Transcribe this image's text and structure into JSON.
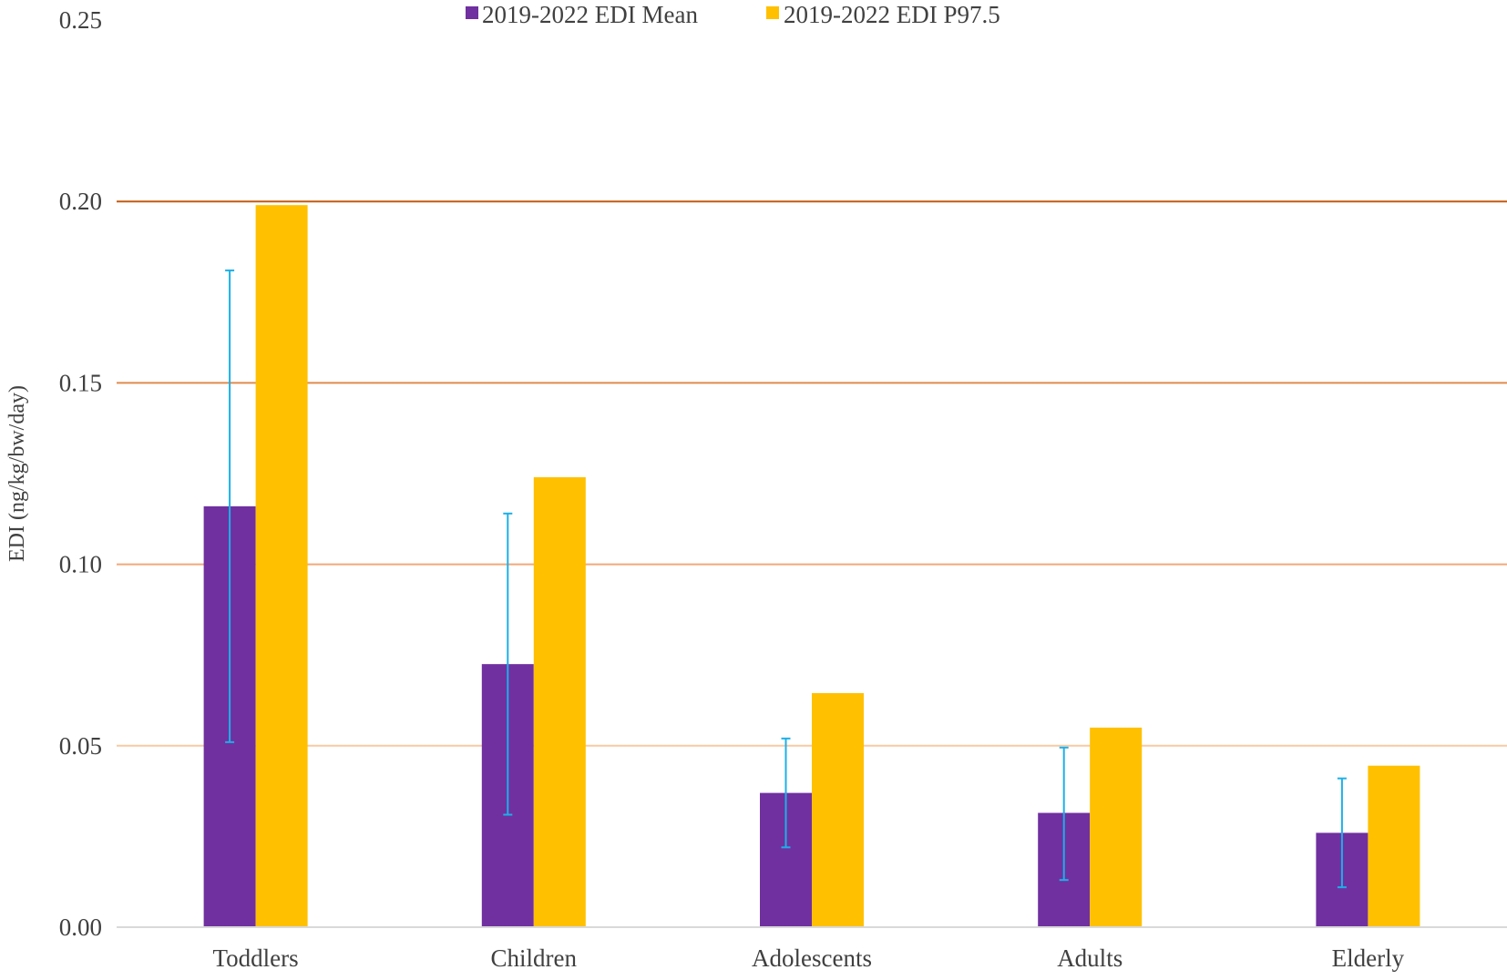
{
  "chart_data": {
    "type": "bar",
    "title": "",
    "xlabel": "",
    "ylabel": "EDI (ng/kg/bw/day)",
    "ylim": [
      0,
      0.25
    ],
    "yticks": [
      "0.00",
      "0.05",
      "0.10",
      "0.15",
      "0.20",
      "0.25"
    ],
    "categories": [
      "Toddlers",
      "Children",
      "Adolescents",
      "Adults",
      "Elderly"
    ],
    "series": [
      {
        "name": "2019-2022 EDI Mean",
        "color": "#7030a0",
        "values": [
          0.116,
          0.0725,
          0.037,
          0.0315,
          0.026
        ],
        "error_low": [
          0.051,
          0.031,
          0.022,
          0.013,
          0.011
        ],
        "error_high": [
          0.181,
          0.114,
          0.052,
          0.0495,
          0.041
        ]
      },
      {
        "name": "2019-2022 EDI P97.5",
        "color": "#ffc000",
        "values": [
          0.199,
          0.124,
          0.0645,
          0.055,
          0.0445
        ]
      }
    ],
    "error_bar_color": "#1cb0e8",
    "reference_lines": [
      {
        "value": 0.05,
        "color": "#f8c9a4"
      },
      {
        "value": 0.1,
        "color": "#f2a97a"
      },
      {
        "value": 0.15,
        "color": "#e08a4e"
      },
      {
        "value": 0.2,
        "color": "#c55a11"
      }
    ],
    "grid": false,
    "legend_position": "top-center"
  }
}
